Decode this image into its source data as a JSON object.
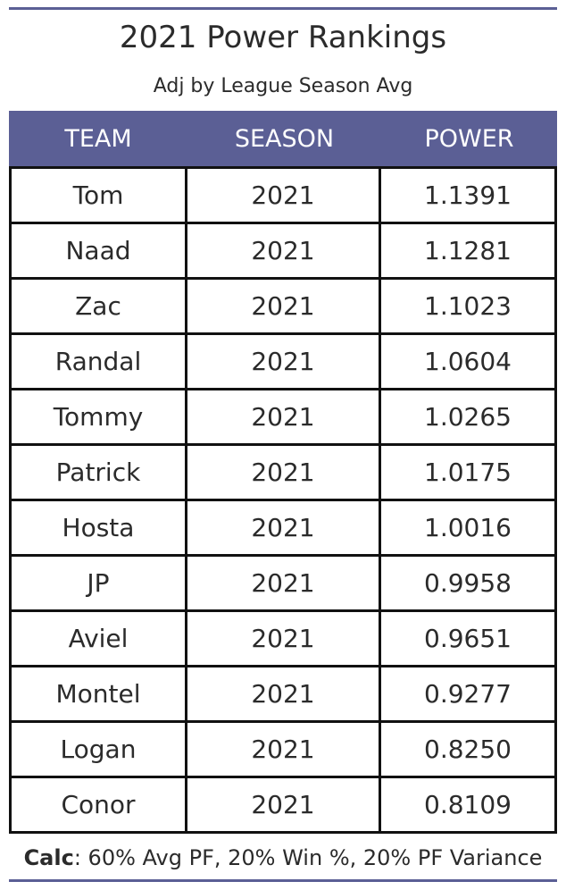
{
  "title": "2021 Power Rankings",
  "subtitle": "Adj by League Season Avg",
  "colors": {
    "accent": "#5b5f95",
    "grid": "#111111",
    "text": "#2b2b2b",
    "header_text": "#ffffff"
  },
  "table": {
    "headers": {
      "team": "TEAM",
      "season": "SEASON",
      "power": "POWER"
    },
    "rows": [
      {
        "team": "Tom",
        "season": "2021",
        "power": "1.1391"
      },
      {
        "team": "Naad",
        "season": "2021",
        "power": "1.1281"
      },
      {
        "team": "Zac",
        "season": "2021",
        "power": "1.1023"
      },
      {
        "team": "Randal",
        "season": "2021",
        "power": "1.0604"
      },
      {
        "team": "Tommy",
        "season": "2021",
        "power": "1.0265"
      },
      {
        "team": "Patrick",
        "season": "2021",
        "power": "1.0175"
      },
      {
        "team": "Hosta",
        "season": "2021",
        "power": "1.0016"
      },
      {
        "team": "JP",
        "season": "2021",
        "power": "0.9958"
      },
      {
        "team": "Aviel",
        "season": "2021",
        "power": "0.9651"
      },
      {
        "team": "Montel",
        "season": "2021",
        "power": "0.9277"
      },
      {
        "team": "Logan",
        "season": "2021",
        "power": "0.8250"
      },
      {
        "team": "Conor",
        "season": "2021",
        "power": "0.8109"
      }
    ]
  },
  "footer": {
    "label": "Calc",
    "text": ": 60% Avg PF, 20% Win %, 20% PF Variance"
  }
}
